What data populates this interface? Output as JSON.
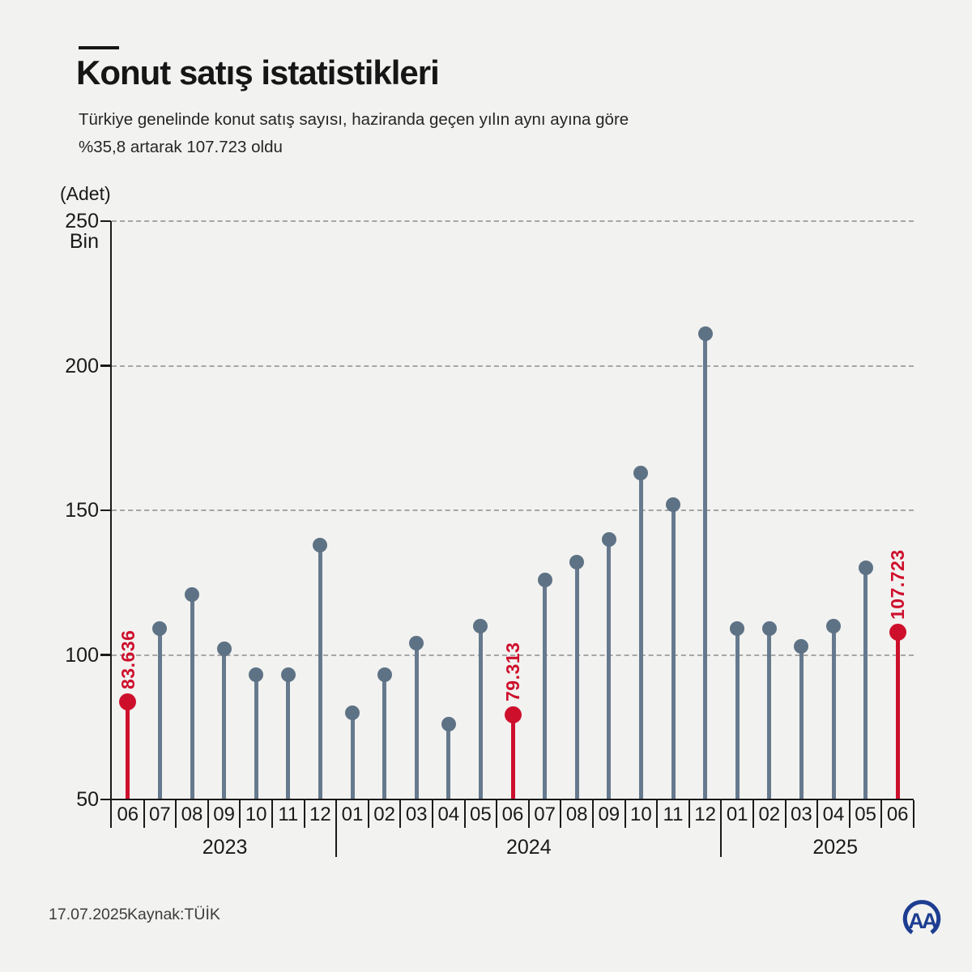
{
  "header": {
    "title": "Konut satış istatistikleri",
    "subtitle_line1": "Türkiye genelinde konut satış sayısı, haziranda geçen yılın aynı ayına göre",
    "subtitle_line2": "%35,8 artarak 107.723 oldu"
  },
  "chart_data": {
    "type": "bar",
    "variant": "lollipop",
    "title": "Konut satış istatistikleri",
    "unit_label": "(Adet)",
    "unit_scale_label": "Bin",
    "values_unit": "bin adet (thousands of housing sales)",
    "ylim": [
      50,
      250
    ],
    "yticks": [
      250,
      200,
      150,
      100,
      50
    ],
    "grid": "horizontal dashed",
    "legend": "none",
    "years": [
      {
        "label": "2023",
        "months": 7
      },
      {
        "label": "2024",
        "months": 12
      },
      {
        "label": "2025",
        "months": 6
      }
    ],
    "points": [
      {
        "year": "2023",
        "month": "06",
        "value": 83.636,
        "label": "83.636",
        "highlight": true
      },
      {
        "year": "2023",
        "month": "07",
        "value": 109,
        "highlight": false
      },
      {
        "year": "2023",
        "month": "08",
        "value": 121,
        "highlight": false
      },
      {
        "year": "2023",
        "month": "09",
        "value": 102,
        "highlight": false
      },
      {
        "year": "2023",
        "month": "10",
        "value": 93,
        "highlight": false
      },
      {
        "year": "2023",
        "month": "11",
        "value": 93,
        "highlight": false
      },
      {
        "year": "2023",
        "month": "12",
        "value": 138,
        "highlight": false
      },
      {
        "year": "2024",
        "month": "01",
        "value": 80,
        "highlight": false
      },
      {
        "year": "2024",
        "month": "02",
        "value": 93,
        "highlight": false
      },
      {
        "year": "2024",
        "month": "03",
        "value": 104,
        "highlight": false
      },
      {
        "year": "2024",
        "month": "04",
        "value": 76,
        "highlight": false
      },
      {
        "year": "2024",
        "month": "05",
        "value": 110,
        "highlight": false
      },
      {
        "year": "2024",
        "month": "06",
        "value": 79.313,
        "label": "79.313",
        "highlight": true
      },
      {
        "year": "2024",
        "month": "07",
        "value": 126,
        "highlight": false
      },
      {
        "year": "2024",
        "month": "08",
        "value": 132,
        "highlight": false
      },
      {
        "year": "2024",
        "month": "09",
        "value": 140,
        "highlight": false
      },
      {
        "year": "2024",
        "month": "10",
        "value": 163,
        "highlight": false
      },
      {
        "year": "2024",
        "month": "11",
        "value": 152,
        "highlight": false
      },
      {
        "year": "2024",
        "month": "12",
        "value": 211,
        "highlight": false
      },
      {
        "year": "2025",
        "month": "01",
        "value": 109,
        "highlight": false
      },
      {
        "year": "2025",
        "month": "02",
        "value": 109,
        "highlight": false
      },
      {
        "year": "2025",
        "month": "03",
        "value": 103,
        "highlight": false
      },
      {
        "year": "2025",
        "month": "04",
        "value": 110,
        "highlight": false
      },
      {
        "year": "2025",
        "month": "05",
        "value": 130,
        "highlight": false
      },
      {
        "year": "2025",
        "month": "06",
        "value": 107.723,
        "label": "107.723",
        "highlight": true
      }
    ],
    "colors": {
      "background": "#f2f2f0",
      "stem": "#66798e",
      "dot": "#5e7285",
      "highlight": "#ce0f2c",
      "axis": "#1a1a1a",
      "gridline": "#a6a6a6"
    }
  },
  "footer": {
    "date": "17.07.2025",
    "source": "Kaynak:TÜİK",
    "logo": "aa-logo",
    "logo_color": "#1d3d91"
  }
}
